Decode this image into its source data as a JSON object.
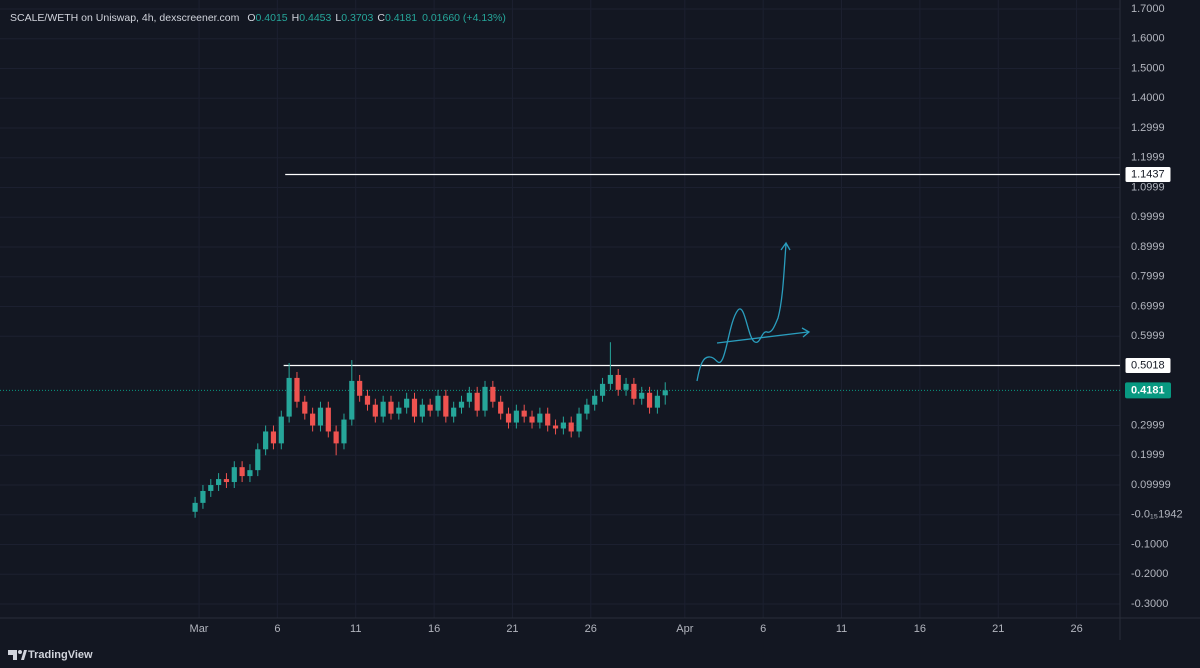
{
  "chart_data": {
    "type": "candlestick",
    "title": "SCALE/WETH on Uniswap, 4h, dexscreener.com",
    "ohlc_letters": [
      "O",
      "H",
      "L",
      "C"
    ],
    "change_label": "0.01660 (+4.13%)",
    "up_color": "#26a69a",
    "down_color": "#ef5350",
    "x": [
      -0.25,
      0.25,
      0.75,
      1.25,
      1.75,
      2.25,
      2.75,
      3.25,
      3.75,
      4.25,
      4.75,
      5.25,
      5.75,
      6.25,
      6.75,
      7.25,
      7.75,
      8.25,
      8.75,
      9.25,
      9.75,
      10.25,
      10.75,
      11.25,
      11.75,
      12.25,
      12.75,
      13.25,
      13.75,
      14.25,
      14.75,
      15.25,
      15.75,
      16.25,
      16.75,
      17.25,
      17.75,
      18.25,
      18.75,
      19.25,
      19.75,
      20.25,
      20.75,
      21.25,
      21.75,
      22.25,
      22.75,
      23.25,
      23.75,
      24.25,
      24.75,
      25.25,
      25.75,
      26.25,
      26.75,
      27.25,
      27.75,
      28.25,
      28.75,
      29.25,
      29.75
    ],
    "open": [
      0.01,
      0.04,
      0.08,
      0.1,
      0.12,
      0.11,
      0.16,
      0.13,
      0.15,
      0.22,
      0.28,
      0.24,
      0.33,
      0.46,
      0.38,
      0.34,
      0.3,
      0.36,
      0.28,
      0.24,
      0.32,
      0.45,
      0.4,
      0.37,
      0.33,
      0.38,
      0.34,
      0.36,
      0.39,
      0.33,
      0.37,
      0.35,
      0.4,
      0.33,
      0.36,
      0.38,
      0.41,
      0.35,
      0.43,
      0.38,
      0.34,
      0.31,
      0.35,
      0.33,
      0.31,
      0.34,
      0.3,
      0.29,
      0.31,
      0.28,
      0.34,
      0.37,
      0.4,
      0.44,
      0.47,
      0.42,
      0.44,
      0.39,
      0.41,
      0.36,
      0.4015
    ],
    "high": [
      0.06,
      0.1,
      0.12,
      0.14,
      0.14,
      0.18,
      0.18,
      0.17,
      0.24,
      0.3,
      0.3,
      0.35,
      0.51,
      0.48,
      0.4,
      0.36,
      0.38,
      0.38,
      0.3,
      0.34,
      0.52,
      0.47,
      0.42,
      0.39,
      0.4,
      0.4,
      0.38,
      0.41,
      0.41,
      0.39,
      0.39,
      0.42,
      0.42,
      0.38,
      0.4,
      0.43,
      0.43,
      0.45,
      0.45,
      0.4,
      0.36,
      0.37,
      0.37,
      0.35,
      0.36,
      0.36,
      0.32,
      0.33,
      0.33,
      0.36,
      0.39,
      0.42,
      0.46,
      0.58,
      0.49,
      0.46,
      0.46,
      0.43,
      0.43,
      0.42,
      0.4453
    ],
    "low": [
      -0.01,
      0.02,
      0.06,
      0.08,
      0.09,
      0.09,
      0.11,
      0.11,
      0.13,
      0.2,
      0.22,
      0.22,
      0.31,
      0.36,
      0.32,
      0.28,
      0.28,
      0.26,
      0.2,
      0.22,
      0.3,
      0.38,
      0.35,
      0.31,
      0.31,
      0.32,
      0.32,
      0.34,
      0.31,
      0.31,
      0.33,
      0.33,
      0.31,
      0.31,
      0.34,
      0.36,
      0.33,
      0.33,
      0.36,
      0.32,
      0.29,
      0.29,
      0.31,
      0.29,
      0.29,
      0.28,
      0.27,
      0.27,
      0.26,
      0.26,
      0.32,
      0.35,
      0.38,
      0.42,
      0.4,
      0.4,
      0.37,
      0.37,
      0.34,
      0.34,
      0.3703
    ],
    "close": [
      0.04,
      0.08,
      0.1,
      0.12,
      0.11,
      0.16,
      0.13,
      0.15,
      0.22,
      0.28,
      0.24,
      0.33,
      0.46,
      0.38,
      0.34,
      0.3,
      0.36,
      0.28,
      0.24,
      0.32,
      0.45,
      0.4,
      0.37,
      0.33,
      0.38,
      0.34,
      0.36,
      0.39,
      0.33,
      0.37,
      0.35,
      0.4,
      0.33,
      0.36,
      0.38,
      0.41,
      0.35,
      0.43,
      0.38,
      0.34,
      0.31,
      0.35,
      0.33,
      0.31,
      0.34,
      0.3,
      0.29,
      0.31,
      0.28,
      0.34,
      0.37,
      0.4,
      0.44,
      0.47,
      0.42,
      0.44,
      0.39,
      0.41,
      0.36,
      0.4,
      0.4181
    ],
    "last_price": 0.4181,
    "last_price_color": "#089981",
    "hlines": [
      {
        "value": 1.1437,
        "start": 5.5
      },
      {
        "value": 0.5018,
        "start": 5.4
      }
    ],
    "xlim": [
      -12.7,
      58.77
    ],
    "ylim": [
      -0.347,
      1.7303
    ],
    "xticks": [
      {
        "value": 0,
        "label": "Mar"
      },
      {
        "value": 5,
        "label": "6"
      },
      {
        "value": 10,
        "label": "11"
      },
      {
        "value": 15,
        "label": "16"
      },
      {
        "value": 20,
        "label": "21"
      },
      {
        "value": 25,
        "label": "26"
      },
      {
        "value": 31,
        "label": "Apr"
      },
      {
        "value": 36,
        "label": "6"
      },
      {
        "value": 41,
        "label": "11"
      },
      {
        "value": 46,
        "label": "16"
      },
      {
        "value": 51,
        "label": "21"
      },
      {
        "value": 56,
        "label": "26"
      }
    ],
    "yticks": [
      {
        "value": 1.7,
        "label": "1.7000"
      },
      {
        "value": 1.6,
        "label": "1.6000"
      },
      {
        "value": 1.5,
        "label": "1.5000"
      },
      {
        "value": 1.4,
        "label": "1.4000"
      },
      1.2999,
      1.1999,
      1.0999,
      0.9999,
      0.8999,
      0.7999,
      0.6999,
      0.5999,
      0.2999,
      0.1999,
      0.09999,
      {
        "value": -1.942e-16,
        "label": "-0.0₁₅1942"
      },
      {
        "value": -0.1,
        "label": "-0.1000"
      },
      {
        "value": -0.2,
        "label": "-0.2000"
      },
      {
        "value": -0.3,
        "label": "-0.3000"
      }
    ],
    "grid": true
  },
  "branding": "TradingView"
}
